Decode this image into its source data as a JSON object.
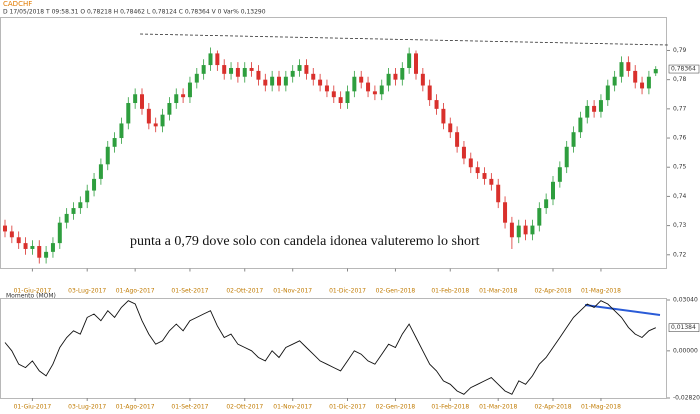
{
  "header": {
    "symbol": "CADCHF",
    "info": "D 17/05/2018   T 09:58.31   O 0,78218   H 0,78462   L 0,78124   C 0,78364   V 0   Var% 0,13290"
  },
  "chart_data": [
    {
      "type": "candlestick",
      "annotation": "punta a 0,79 dove solo con candela idonea valuteremo lo short",
      "up_color": "#2e9e3e",
      "down_color": "#d9302c",
      "ylim": [
        0.7153,
        0.8013
      ],
      "yticks": [
        {
          "value": 0.72,
          "label": "0,72"
        },
        {
          "value": 0.73,
          "label": "0,73"
        },
        {
          "value": 0.74,
          "label": "0,74"
        },
        {
          "value": 0.75,
          "label": "0,75"
        },
        {
          "value": 0.76,
          "label": "0,76"
        },
        {
          "value": 0.77,
          "label": "0,77"
        },
        {
          "value": 0.78,
          "label": "0,78"
        },
        {
          "value": 0.79,
          "label": "0,79"
        }
      ],
      "last_label": {
        "value": 0.78364,
        "label": "0,78364"
      },
      "categories": [
        null,
        null,
        null,
        null,
        "01-Giu-2017",
        null,
        null,
        null,
        null,
        null,
        null,
        null,
        "03-Lug-2017",
        null,
        null,
        null,
        null,
        null,
        null,
        "01-Ago-2017",
        null,
        null,
        null,
        null,
        null,
        null,
        null,
        "01-Set-2017",
        null,
        null,
        null,
        null,
        null,
        null,
        null,
        "02-Ott-2017",
        null,
        null,
        null,
        null,
        null,
        null,
        "01-Nov-2017",
        null,
        null,
        null,
        null,
        null,
        null,
        null,
        "01-Dic-2017",
        null,
        null,
        null,
        null,
        null,
        null,
        "02-Gen-2018",
        null,
        null,
        null,
        null,
        null,
        null,
        null,
        "01-Feb-2018",
        null,
        null,
        null,
        null,
        null,
        null,
        "01-Mar-2018",
        null,
        null,
        null,
        null,
        null,
        null,
        null,
        "02-Apr-2018",
        null,
        null,
        null,
        null,
        null,
        null,
        "01-Mag-2018",
        null,
        null,
        null,
        null,
        null,
        null,
        null,
        null
      ],
      "open": [
        0.73,
        0.728,
        0.726,
        0.724,
        0.722,
        0.723,
        0.719,
        0.721,
        0.724,
        0.731,
        0.734,
        0.736,
        0.738,
        0.742,
        0.746,
        0.751,
        0.757,
        0.76,
        0.765,
        0.772,
        0.775,
        0.77,
        0.765,
        0.764,
        0.768,
        0.772,
        0.775,
        0.774,
        0.779,
        0.782,
        0.785,
        0.789,
        0.785,
        0.782,
        0.784,
        0.781,
        0.784,
        0.783,
        0.78,
        0.778,
        0.781,
        0.778,
        0.781,
        0.783,
        0.785,
        0.782,
        0.78,
        0.778,
        0.776,
        0.774,
        0.772,
        0.776,
        0.781,
        0.779,
        0.776,
        0.775,
        0.778,
        0.782,
        0.78,
        0.784,
        0.789,
        0.782,
        0.778,
        0.773,
        0.77,
        0.765,
        0.762,
        0.757,
        0.753,
        0.75,
        0.748,
        0.746,
        0.744,
        0.738,
        0.731,
        0.726,
        0.73,
        0.727,
        0.73,
        0.736,
        0.739,
        0.745,
        0.75,
        0.757,
        0.762,
        0.767,
        0.771,
        0.769,
        0.773,
        0.778,
        0.781,
        0.786,
        0.783,
        0.779,
        0.777,
        0.78218
      ],
      "high": [
        0.732,
        0.73,
        0.728,
        0.726,
        0.725,
        0.725,
        0.723,
        0.726,
        0.733,
        0.736,
        0.738,
        0.74,
        0.744,
        0.748,
        0.753,
        0.759,
        0.762,
        0.767,
        0.774,
        0.777,
        0.777,
        0.772,
        0.767,
        0.77,
        0.774,
        0.777,
        0.777,
        0.781,
        0.784,
        0.787,
        0.791,
        0.79,
        0.787,
        0.786,
        0.786,
        0.786,
        0.786,
        0.785,
        0.782,
        0.783,
        0.783,
        0.783,
        0.785,
        0.787,
        0.787,
        0.784,
        0.782,
        0.78,
        0.778,
        0.776,
        0.778,
        0.783,
        0.783,
        0.781,
        0.778,
        0.78,
        0.784,
        0.784,
        0.786,
        0.791,
        0.79,
        0.784,
        0.78,
        0.775,
        0.772,
        0.767,
        0.764,
        0.759,
        0.755,
        0.752,
        0.75,
        0.748,
        0.746,
        0.74,
        0.733,
        0.732,
        0.732,
        0.732,
        0.738,
        0.741,
        0.747,
        0.752,
        0.759,
        0.764,
        0.769,
        0.773,
        0.773,
        0.775,
        0.78,
        0.783,
        0.788,
        0.788,
        0.785,
        0.781,
        0.783,
        0.78462
      ],
      "low": [
        0.726,
        0.724,
        0.722,
        0.72,
        0.72,
        0.717,
        0.717,
        0.719,
        0.722,
        0.729,
        0.732,
        0.734,
        0.736,
        0.74,
        0.744,
        0.749,
        0.755,
        0.758,
        0.763,
        0.77,
        0.768,
        0.763,
        0.762,
        0.762,
        0.766,
        0.77,
        0.772,
        0.772,
        0.777,
        0.78,
        0.783,
        0.783,
        0.78,
        0.78,
        0.779,
        0.779,
        0.781,
        0.778,
        0.776,
        0.776,
        0.776,
        0.776,
        0.779,
        0.781,
        0.78,
        0.778,
        0.776,
        0.774,
        0.772,
        0.77,
        0.77,
        0.774,
        0.777,
        0.774,
        0.773,
        0.773,
        0.776,
        0.778,
        0.778,
        0.782,
        0.78,
        0.776,
        0.771,
        0.768,
        0.763,
        0.76,
        0.755,
        0.751,
        0.748,
        0.746,
        0.744,
        0.742,
        0.736,
        0.729,
        0.722,
        0.724,
        0.725,
        0.725,
        0.728,
        0.734,
        0.737,
        0.743,
        0.748,
        0.755,
        0.76,
        0.765,
        0.767,
        0.767,
        0.771,
        0.776,
        0.779,
        0.781,
        0.777,
        0.775,
        0.775,
        0.78124
      ],
      "close": [
        0.728,
        0.726,
        0.724,
        0.722,
        0.723,
        0.719,
        0.721,
        0.724,
        0.731,
        0.734,
        0.736,
        0.738,
        0.742,
        0.746,
        0.751,
        0.757,
        0.76,
        0.765,
        0.772,
        0.775,
        0.77,
        0.765,
        0.764,
        0.768,
        0.772,
        0.775,
        0.774,
        0.779,
        0.782,
        0.785,
        0.789,
        0.785,
        0.782,
        0.784,
        0.781,
        0.784,
        0.783,
        0.78,
        0.778,
        0.781,
        0.778,
        0.781,
        0.783,
        0.785,
        0.782,
        0.78,
        0.778,
        0.776,
        0.774,
        0.772,
        0.776,
        0.781,
        0.779,
        0.776,
        0.775,
        0.778,
        0.782,
        0.78,
        0.784,
        0.789,
        0.782,
        0.778,
        0.773,
        0.77,
        0.765,
        0.762,
        0.757,
        0.753,
        0.75,
        0.748,
        0.746,
        0.744,
        0.738,
        0.731,
        0.726,
        0.73,
        0.727,
        0.73,
        0.736,
        0.739,
        0.745,
        0.75,
        0.757,
        0.762,
        0.767,
        0.771,
        0.769,
        0.773,
        0.778,
        0.781,
        0.786,
        0.783,
        0.779,
        0.777,
        0.781,
        0.78364
      ]
    },
    {
      "type": "line",
      "title": "Momento (MOM)",
      "color": "#111111",
      "ylim": [
        -0.0282,
        0.0304
      ],
      "yticks": [
        {
          "value": -0.0282,
          "label": "-0,02820"
        },
        {
          "value": 0,
          "label": "0,00000"
        },
        {
          "value": 0.0304,
          "label": "0,03040"
        }
      ],
      "last_label": {
        "value": 0.01384,
        "label": "0,01384"
      },
      "categories": [
        null,
        null,
        null,
        null,
        "01-Giu-2017",
        null,
        null,
        null,
        null,
        null,
        null,
        null,
        "03-Lug-2017",
        null,
        null,
        null,
        null,
        null,
        null,
        "01-Ago-2017",
        null,
        null,
        null,
        null,
        null,
        null,
        null,
        "01-Set-2017",
        null,
        null,
        null,
        null,
        null,
        null,
        null,
        "02-Ott-2017",
        null,
        null,
        null,
        null,
        null,
        null,
        "01-Nov-2017",
        null,
        null,
        null,
        null,
        null,
        null,
        null,
        "01-Dic-2017",
        null,
        null,
        null,
        null,
        null,
        null,
        "02-Gen-2018",
        null,
        null,
        null,
        null,
        null,
        null,
        null,
        "01-Feb-2018",
        null,
        null,
        null,
        null,
        null,
        null,
        "01-Mar-2018",
        null,
        null,
        null,
        null,
        null,
        null,
        null,
        "02-Apr-2018",
        null,
        null,
        null,
        null,
        null,
        null,
        "01-Mag-2018",
        null,
        null,
        null,
        null,
        null,
        null,
        null,
        null
      ],
      "values": [
        0.005,
        0.0,
        -0.008,
        -0.01,
        -0.006,
        -0.012,
        -0.015,
        -0.008,
        0.002,
        0.008,
        0.012,
        0.01,
        0.02,
        0.022,
        0.018,
        0.024,
        0.02,
        0.026,
        0.03,
        0.028,
        0.018,
        0.01,
        0.004,
        0.006,
        0.012,
        0.016,
        0.012,
        0.018,
        0.02,
        0.022,
        0.024,
        0.015,
        0.008,
        0.01,
        0.004,
        0.002,
        0.0,
        -0.004,
        -0.006,
        0.0,
        -0.004,
        0.002,
        0.004,
        0.006,
        0.002,
        -0.002,
        -0.006,
        -0.008,
        -0.01,
        -0.012,
        -0.006,
        0.0,
        -0.002,
        -0.006,
        -0.008,
        -0.002,
        0.004,
        0.002,
        0.01,
        0.016,
        0.008,
        0.0,
        -0.008,
        -0.012,
        -0.018,
        -0.02,
        -0.024,
        -0.026,
        -0.022,
        -0.02,
        -0.018,
        -0.016,
        -0.02,
        -0.024,
        -0.026,
        -0.018,
        -0.02,
        -0.015,
        -0.008,
        -0.004,
        0.002,
        0.008,
        0.014,
        0.02,
        0.024,
        0.028,
        0.026,
        0.03,
        0.028,
        0.024,
        0.02,
        0.014,
        0.01,
        0.008,
        0.012,
        0.01384
      ]
    }
  ]
}
